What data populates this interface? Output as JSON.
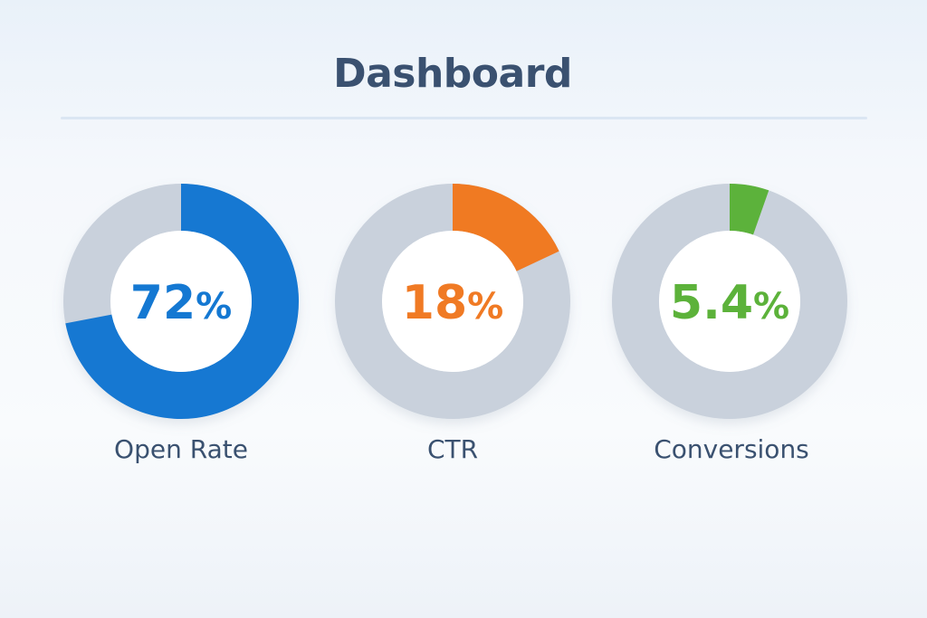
{
  "header": {
    "title": "Dashboard"
  },
  "colors": {
    "track": "#c9d1dc",
    "title": "#3a5170"
  },
  "chart_data": [
    {
      "type": "pie",
      "name": "Open Rate",
      "value": 72,
      "max": 100,
      "display": "72",
      "unit": "%",
      "color": "#1478d2"
    },
    {
      "type": "pie",
      "name": "CTR",
      "value": 18,
      "max": 100,
      "display": "18",
      "unit": "%",
      "color": "#f07a24"
    },
    {
      "type": "pie",
      "name": "Conversions",
      "value": 5.4,
      "max": 100,
      "display": "5.4",
      "unit": "%",
      "color": "#5cb23a"
    }
  ]
}
